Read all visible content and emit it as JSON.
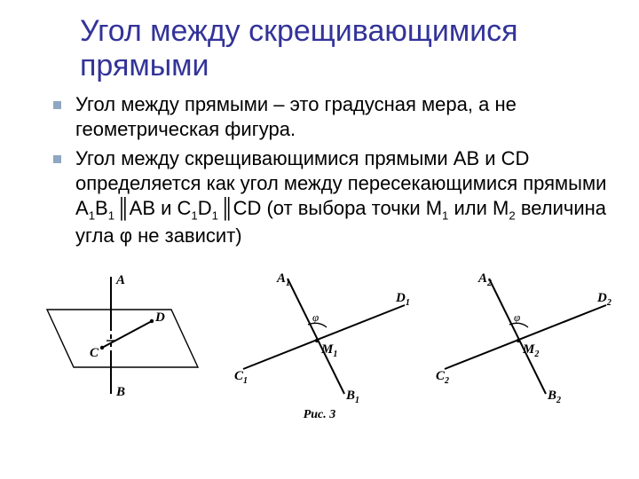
{
  "title": "Угол между скрещивающимися прямыми",
  "bullets": [
    "Угол между прямыми – это градусная мера, а не геометрическая фигура.",
    "Угол между скрещивающимися прямыми AB и CD определяется как угол между пересекающимися прямыми A<sub>1</sub>B<sub>1</sub><span class=\"parallel\">║</span>AB и C<sub>1</sub>D<sub>1</sub><span class=\"parallel\">║</span>CD (от выбора точки M<sub>1</sub> или M<sub>2</sub> величина угла φ не зависит)"
  ],
  "fig_labels": {
    "A": "A",
    "B": "B",
    "C": "C",
    "D": "D",
    "A1": "A",
    "B1": "B",
    "C1": "C",
    "D1": "D",
    "M1": "M",
    "A2": "A",
    "B2": "B",
    "C2": "C",
    "D2": "D",
    "M2": "M",
    "phi": "φ"
  },
  "caption": "Рис. 3",
  "colors": {
    "title": "#333399",
    "bullet": "#8fa7c3",
    "text": "#000000",
    "bg": "#ffffff",
    "stroke": "#000000"
  },
  "typography": {
    "title_fontsize": 34,
    "body_fontsize": 22,
    "caption_fontsize": 14
  }
}
